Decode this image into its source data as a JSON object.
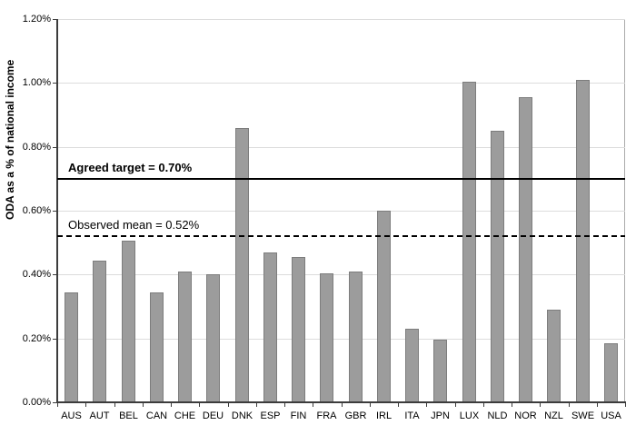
{
  "chart_data": {
    "type": "bar",
    "title": "",
    "xlabel": "",
    "ylabel": "ODA as a % of national income",
    "categories": [
      "AUS",
      "AUT",
      "BEL",
      "CAN",
      "CHE",
      "DEU",
      "DNK",
      "ESP",
      "FIN",
      "FRA",
      "GBR",
      "IRL",
      "ITA",
      "JPN",
      "LUX",
      "NLD",
      "NOR",
      "NZL",
      "SWE",
      "USA"
    ],
    "values": [
      0.345,
      0.445,
      0.505,
      0.345,
      0.41,
      0.4,
      0.86,
      0.47,
      0.455,
      0.405,
      0.41,
      0.6,
      0.23,
      0.195,
      1.005,
      0.85,
      0.955,
      0.29,
      1.01,
      0.185
    ],
    "value_unit": "%",
    "ylim": [
      0,
      1.2
    ],
    "ytick_labels": [
      "0.00%",
      "0.20%",
      "0.40%",
      "0.60%",
      "0.80%",
      "1.00%",
      "1.20%"
    ],
    "grid": true,
    "legend": "none",
    "bar_color": "#9c9c9c",
    "bar_border_color": "#7d7d7d",
    "gridline_color": "#dcdcdc",
    "reference_lines": [
      {
        "id": "target",
        "label": "Agreed target = 0.70%",
        "value": 0.7,
        "style": "solid",
        "color": "#000000",
        "label_bold": true
      },
      {
        "id": "mean",
        "label": "Observed mean = 0.52%",
        "value": 0.52,
        "style": "dashed",
        "color": "#000000",
        "label_bold": false
      }
    ]
  }
}
